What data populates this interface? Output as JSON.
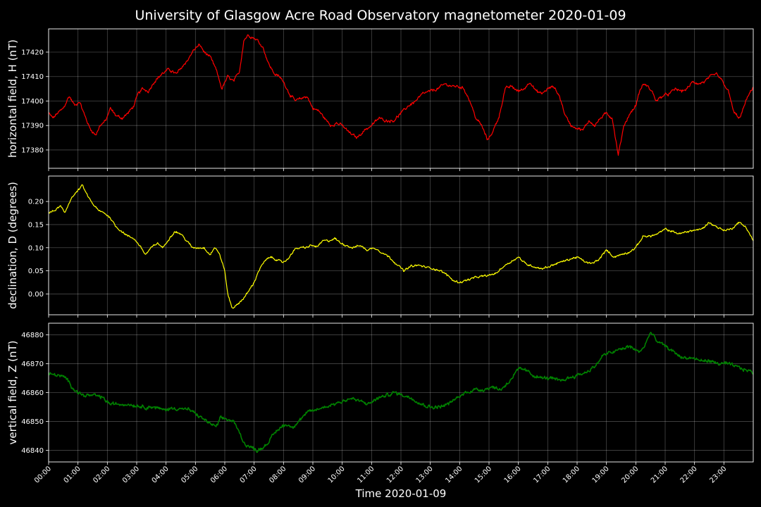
{
  "chart_data": {
    "type": "line",
    "title": "University of Glasgow Acre Road Observatory magnetometer 2020-01-09",
    "xlabel": "Time 2020-01-09",
    "x_ticks": [
      "00:00",
      "01:00",
      "02:00",
      "03:00",
      "04:00",
      "05:00",
      "06:00",
      "07:00",
      "08:00",
      "09:00",
      "10:00",
      "11:00",
      "12:00",
      "13:00",
      "14:00",
      "15:00",
      "16:00",
      "17:00",
      "18:00",
      "19:00",
      "20:00",
      "21:00",
      "22:00",
      "23:00"
    ],
    "xlim_hours": [
      0,
      24
    ],
    "grid": true,
    "background": "#000000",
    "panels": [
      {
        "ylabel": "horizontal field, H (nT)",
        "color": "#ff0000",
        "ylim": [
          17372.5,
          17429.5
        ],
        "y_ticks": [
          17380,
          17390,
          17400,
          17410,
          17420
        ],
        "noise": 0.8,
        "series": {
          "x": [
            0,
            0.15,
            0.3,
            0.5,
            0.7,
            0.9,
            1.05,
            1.2,
            1.4,
            1.6,
            1.75,
            1.95,
            2.1,
            2.3,
            2.5,
            2.7,
            2.9,
            3.05,
            3.2,
            3.4,
            3.6,
            3.85,
            4.1,
            4.35,
            4.55,
            4.75,
            4.95,
            5.15,
            5.3,
            5.5,
            5.7,
            5.9,
            6.1,
            6.3,
            6.5,
            6.65,
            6.8,
            6.95,
            7.1,
            7.3,
            7.5,
            7.7,
            7.85,
            8.0,
            8.2,
            8.4,
            8.6,
            8.8,
            9.0,
            9.2,
            9.4,
            9.6,
            9.8,
            10.0,
            10.25,
            10.5,
            10.75,
            11.0,
            11.25,
            11.5,
            11.75,
            12.0,
            12.25,
            12.5,
            12.75,
            13.0,
            13.25,
            13.5,
            13.75,
            13.95,
            14.15,
            14.35,
            14.55,
            14.75,
            14.95,
            15.15,
            15.35,
            15.55,
            15.75,
            16.0,
            16.2,
            16.4,
            16.6,
            16.8,
            17.0,
            17.2,
            17.4,
            17.6,
            17.8,
            18.0,
            18.2,
            18.4,
            18.6,
            18.8,
            19.0,
            19.2,
            19.4,
            19.6,
            19.8,
            20.0,
            20.1,
            20.25,
            20.4,
            20.55,
            20.7,
            20.9,
            21.15,
            21.35,
            21.55,
            21.75,
            21.95,
            22.15,
            22.35,
            22.55,
            22.75,
            22.95,
            23.15,
            23.35,
            23.55,
            23.75,
            24.0
          ],
          "values": [
            17395,
            17393,
            17395,
            17397,
            17402,
            17398,
            17400,
            17395,
            17389,
            17386,
            17390,
            17392,
            17397,
            17394,
            17393,
            17395,
            17398,
            17403,
            17405,
            17404,
            17408,
            17411,
            17413,
            17411,
            17414,
            17417,
            17421,
            17423,
            17420,
            17418,
            17413,
            17405,
            17410,
            17408,
            17412,
            17425,
            17427,
            17426,
            17425,
            17422,
            17415,
            17411,
            17410,
            17408,
            17403,
            17400,
            17401,
            17402,
            17397,
            17396,
            17393,
            17390,
            17391,
            17390,
            17387,
            17385,
            17388,
            17390,
            17393,
            17392,
            17392,
            17395,
            17398,
            17400,
            17403,
            17404,
            17405,
            17407,
            17406,
            17406,
            17405,
            17400,
            17393,
            17390,
            17384,
            17388,
            17394,
            17405,
            17406,
            17404,
            17405,
            17408,
            17404,
            17403,
            17405,
            17406,
            17402,
            17394,
            17390,
            17389,
            17388,
            17392,
            17390,
            17393,
            17395,
            17393,
            17378,
            17390,
            17395,
            17398,
            17403,
            17407,
            17406,
            17404,
            17400,
            17402,
            17403,
            17405,
            17404,
            17405,
            17408,
            17407,
            17408,
            17410,
            17411,
            17408,
            17404,
            17395,
            17393,
            17400,
            17406
          ],
          "unused": null
        }
      },
      {
        "ylabel": "declination, D (degrees)",
        "color": "#ffff00",
        "ylim": [
          -0.045,
          0.255
        ],
        "y_ticks": [
          "0.00",
          "0.05",
          "0.10",
          "0.15",
          "0.20"
        ],
        "noise": 0.003,
        "series": {
          "x": [
            0,
            0.2,
            0.4,
            0.55,
            0.75,
            0.95,
            1.15,
            1.3,
            1.5,
            1.7,
            1.9,
            2.1,
            2.3,
            2.5,
            2.7,
            2.9,
            3.1,
            3.3,
            3.5,
            3.7,
            3.9,
            4.1,
            4.3,
            4.5,
            4.7,
            4.9,
            5.1,
            5.3,
            5.5,
            5.65,
            5.8,
            6.0,
            6.1,
            6.25,
            6.4,
            6.55,
            6.7,
            6.85,
            7.0,
            7.15,
            7.35,
            7.55,
            7.75,
            7.95,
            8.15,
            8.35,
            8.55,
            8.75,
            8.95,
            9.15,
            9.35,
            9.55,
            9.75,
            9.95,
            10.15,
            10.35,
            10.6,
            10.85,
            11.1,
            11.35,
            11.6,
            11.85,
            12.1,
            12.35,
            12.6,
            12.85,
            13.1,
            13.35,
            13.6,
            13.8,
            14.0,
            14.25,
            14.5,
            14.75,
            15.0,
            15.25,
            15.5,
            15.75,
            16.0,
            16.25,
            16.5,
            16.75,
            17.0,
            17.25,
            17.5,
            17.75,
            18.0,
            18.25,
            18.5,
            18.75,
            19.0,
            19.25,
            19.5,
            19.75,
            20.0,
            20.25,
            20.5,
            20.75,
            21.0,
            21.25,
            21.5,
            21.75,
            22.0,
            22.25,
            22.5,
            22.75,
            23.0,
            23.25,
            23.5,
            23.75,
            24.0
          ],
          "values": [
            0.175,
            0.18,
            0.19,
            0.175,
            0.205,
            0.22,
            0.235,
            0.215,
            0.195,
            0.18,
            0.175,
            0.165,
            0.145,
            0.135,
            0.125,
            0.12,
            0.105,
            0.085,
            0.1,
            0.11,
            0.1,
            0.12,
            0.135,
            0.13,
            0.115,
            0.1,
            0.1,
            0.1,
            0.085,
            0.1,
            0.09,
            0.05,
            0.0,
            -0.03,
            -0.025,
            -0.015,
            -0.005,
            0.01,
            0.025,
            0.05,
            0.07,
            0.08,
            0.075,
            0.068,
            0.075,
            0.095,
            0.1,
            0.1,
            0.105,
            0.102,
            0.115,
            0.115,
            0.12,
            0.11,
            0.105,
            0.1,
            0.105,
            0.095,
            0.1,
            0.09,
            0.08,
            0.065,
            0.05,
            0.06,
            0.062,
            0.058,
            0.055,
            0.05,
            0.04,
            0.028,
            0.025,
            0.03,
            0.035,
            0.038,
            0.04,
            0.045,
            0.06,
            0.07,
            0.08,
            0.065,
            0.06,
            0.055,
            0.058,
            0.065,
            0.07,
            0.075,
            0.08,
            0.07,
            0.065,
            0.075,
            0.095,
            0.08,
            0.085,
            0.09,
            0.1,
            0.125,
            0.125,
            0.13,
            0.14,
            0.135,
            0.13,
            0.135,
            0.138,
            0.14,
            0.155,
            0.145,
            0.138,
            0.14,
            0.155,
            0.145,
            0.115
          ],
          "unused": null
        }
      },
      {
        "ylabel": "vertical field, Z (nT)",
        "color": "#008000",
        "ylim": [
          46836,
          46884
        ],
        "y_ticks": [
          46840,
          46850,
          46860,
          46870,
          46880
        ],
        "noise": 0.8,
        "series": {
          "x": [
            0,
            0.3,
            0.6,
            0.8,
            1.0,
            1.2,
            1.5,
            1.8,
            2.1,
            2.4,
            2.7,
            3.0,
            3.3,
            3.6,
            3.9,
            4.2,
            4.5,
            4.8,
            5.1,
            5.4,
            5.7,
            5.85,
            6.0,
            6.3,
            6.5,
            6.7,
            6.9,
            7.1,
            7.3,
            7.5,
            7.7,
            7.9,
            8.1,
            8.3,
            8.5,
            8.8,
            9.1,
            9.4,
            9.7,
            10.0,
            10.3,
            10.6,
            10.9,
            11.2,
            11.5,
            11.8,
            12.1,
            12.4,
            12.7,
            13.0,
            13.3,
            13.6,
            13.9,
            14.2,
            14.5,
            14.8,
            15.1,
            15.4,
            15.7,
            16.0,
            16.2,
            16.5,
            16.8,
            17.1,
            17.4,
            17.7,
            18.0,
            18.3,
            18.6,
            18.9,
            19.2,
            19.5,
            19.8,
            20.1,
            20.3,
            20.5,
            20.7,
            21.0,
            21.3,
            21.6,
            21.9,
            22.2,
            22.5,
            22.8,
            23.1,
            23.4,
            23.7,
            24.0
          ],
          "values": [
            46866.5,
            46866,
            46865,
            46862,
            46860,
            46859,
            46859,
            46858.5,
            46856,
            46856,
            46856,
            46855.5,
            46855,
            46855,
            46854,
            46854.5,
            46854.5,
            46854,
            46852,
            46850,
            46848,
            46851,
            46851,
            46850,
            46846,
            46842,
            46841,
            46840,
            46841,
            46843,
            46846,
            46848,
            46849,
            46848,
            46850,
            46853,
            46854,
            46855,
            46856,
            46857,
            46858,
            46857,
            46856,
            46858,
            46859,
            46860,
            46859,
            46858,
            46856,
            46855,
            46855,
            46856,
            46858,
            46860,
            46861,
            46861,
            46862,
            46861,
            46864,
            46868,
            46868,
            46866,
            46865,
            46865,
            46864,
            46865,
            46866,
            46867,
            46869,
            46873,
            46874,
            46875,
            46876,
            46874,
            46876,
            46881,
            46878,
            46876,
            46874,
            46872,
            46872,
            46871,
            46871,
            46870,
            46870,
            46869,
            46868,
            46867
          ],
          "unused": null
        }
      }
    ]
  }
}
